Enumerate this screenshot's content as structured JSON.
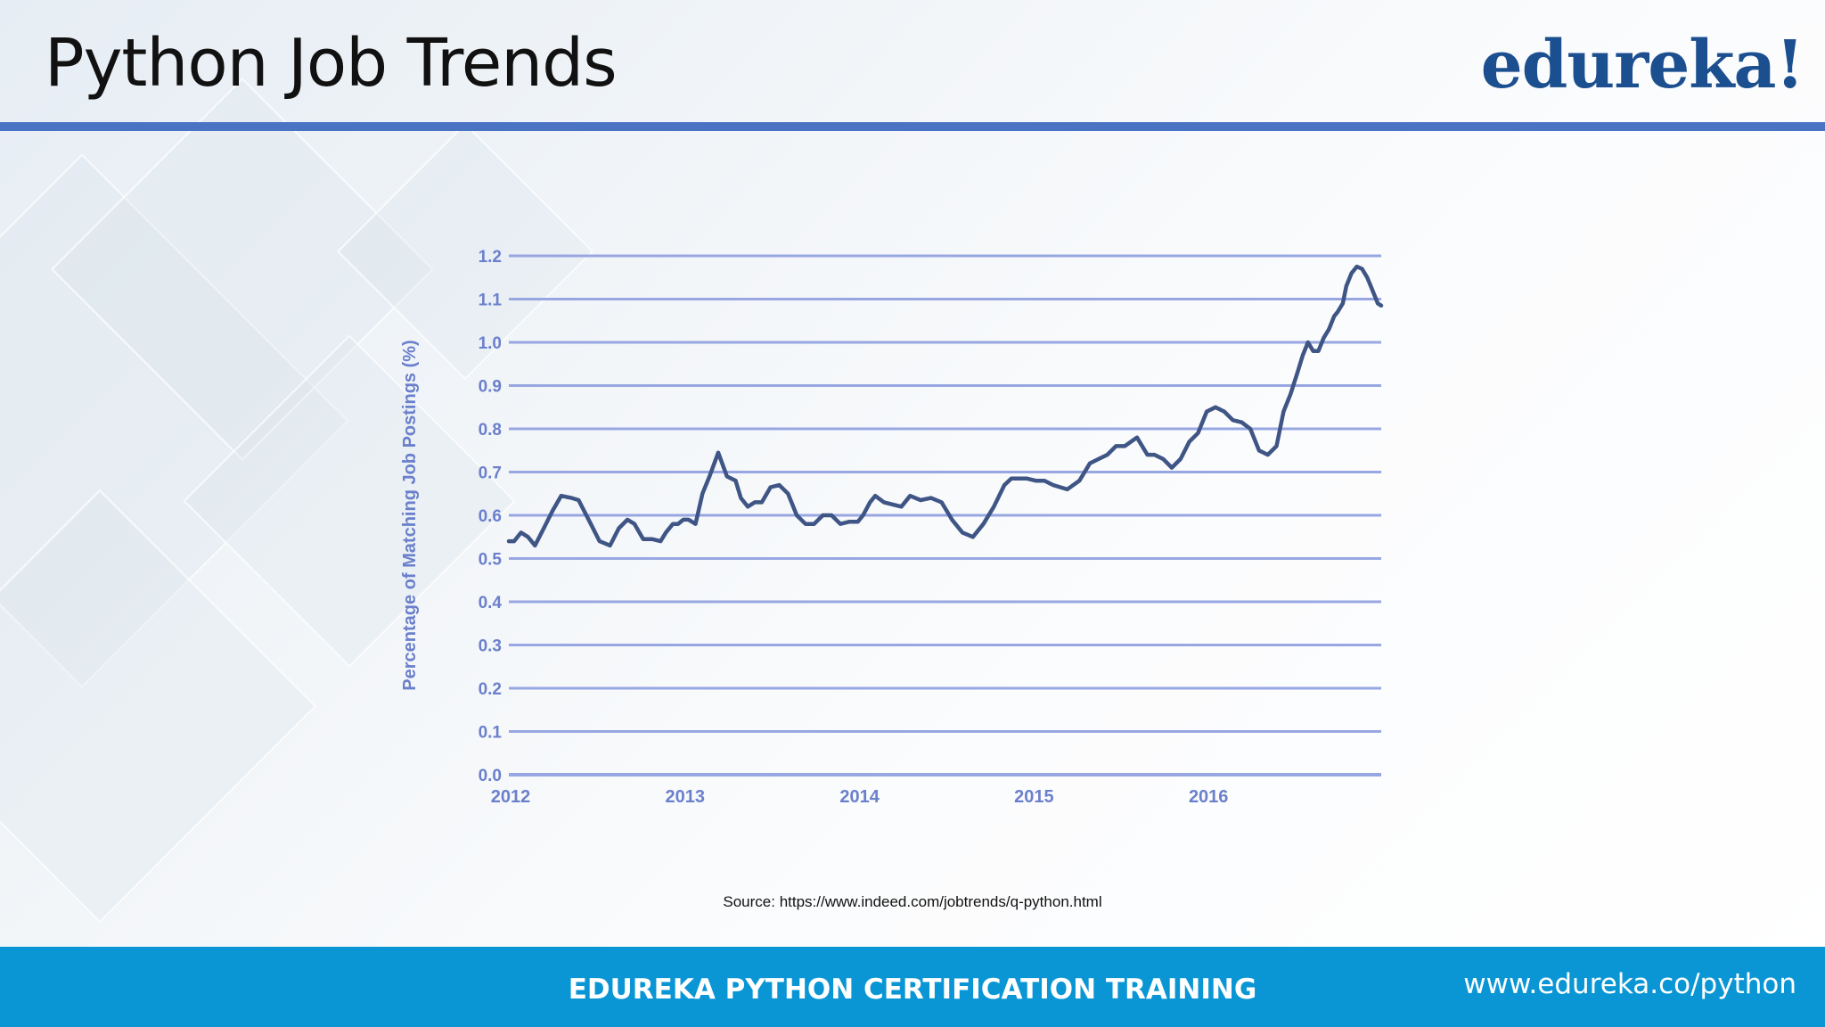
{
  "slide": {
    "title": "Python Job Trends",
    "logo_text": "edureka!",
    "source": "Source: https://www.indeed.com/jobtrends/q-python.html"
  },
  "footer": {
    "title": "EDUREKA PYTHON CERTIFICATION TRAINING",
    "url": "www.edureka.co/python"
  },
  "colors": {
    "title_rule": "#4a73c4",
    "footer_bg": "#0a96d4",
    "logo": "#1b4f8f",
    "line": "#3f5585",
    "gridline": "#98a7e2",
    "axis_text": "#6b80cc"
  },
  "chart_data": {
    "type": "line",
    "ylabel": "Percentage of Matching Job Postings (%)",
    "xlabel": "",
    "title": "",
    "xlim": [
      2012,
      2017
    ],
    "ylim": [
      0,
      1.2
    ],
    "x_ticks": [
      2012,
      2013,
      2014,
      2015,
      2016
    ],
    "x_tick_labels": [
      "2012",
      "2013",
      "2014",
      "2015",
      "2016"
    ],
    "y_ticks": [
      0.0,
      0.1,
      0.2,
      0.3,
      0.4,
      0.5,
      0.6,
      0.7,
      0.8,
      0.9,
      1.0,
      1.1,
      1.2
    ],
    "y_tick_labels": [
      "0.0",
      "0.1",
      "0.2",
      "0.3",
      "0.4",
      "0.5",
      "0.6",
      "0.7",
      "0.8",
      "0.9",
      "1.0",
      "1.1",
      "1.2"
    ],
    "grid": true,
    "legend": "none",
    "series": [
      {
        "x": [
          2012.0,
          2012.03,
          2012.07,
          2012.11,
          2012.15,
          2012.2,
          2012.25,
          2012.3,
          2012.36,
          2012.4,
          2012.47,
          2012.52,
          2012.58,
          2012.63,
          2012.68,
          2012.72,
          2012.77,
          2012.82,
          2012.87,
          2012.9,
          2012.94,
          2012.97,
          2013.0,
          2013.03,
          2013.07,
          2013.11,
          2013.15,
          2013.2,
          2013.25,
          2013.3,
          2013.33,
          2013.37,
          2013.41,
          2013.45,
          2013.5,
          2013.55,
          2013.6,
          2013.65,
          2013.7,
          2013.75,
          2013.8,
          2013.85,
          2013.9,
          2013.95,
          2014.0,
          2014.03,
          2014.07,
          2014.1,
          2014.15,
          2014.2,
          2014.25,
          2014.3,
          2014.36,
          2014.42,
          2014.48,
          2014.54,
          2014.6,
          2014.66,
          2014.72,
          2014.78,
          2014.84,
          2014.88,
          2014.93,
          2014.97,
          2015.02,
          2015.07,
          2015.12,
          2015.2,
          2015.27,
          2015.33,
          2015.38,
          2015.43,
          2015.48,
          2015.53,
          2015.6,
          2015.66,
          2015.7,
          2015.75,
          2015.8,
          2015.85,
          2015.9,
          2015.95,
          2016.0,
          2016.05,
          2016.1,
          2016.15,
          2016.2,
          2016.25,
          2016.3,
          2016.35,
          2016.4,
          2016.44,
          2016.48,
          2016.52,
          2016.55,
          2016.58,
          2016.61,
          2016.64,
          2016.67,
          2016.7,
          2016.73,
          2016.75,
          2016.78,
          2016.8,
          2016.83,
          2016.86,
          2016.89,
          2016.92,
          2016.94,
          2016.96,
          2016.98,
          2017.0
        ],
        "y": [
          0.54,
          0.54,
          0.56,
          0.55,
          0.53,
          0.57,
          0.61,
          0.645,
          0.64,
          0.635,
          0.58,
          0.54,
          0.53,
          0.57,
          0.59,
          0.58,
          0.545,
          0.545,
          0.54,
          0.56,
          0.58,
          0.58,
          0.59,
          0.59,
          0.58,
          0.65,
          0.69,
          0.745,
          0.69,
          0.68,
          0.64,
          0.62,
          0.63,
          0.63,
          0.665,
          0.67,
          0.65,
          0.6,
          0.58,
          0.58,
          0.6,
          0.6,
          0.58,
          0.585,
          0.585,
          0.6,
          0.63,
          0.645,
          0.63,
          0.625,
          0.62,
          0.645,
          0.635,
          0.64,
          0.63,
          0.59,
          0.56,
          0.55,
          0.58,
          0.62,
          0.67,
          0.685,
          0.685,
          0.685,
          0.68,
          0.68,
          0.67,
          0.66,
          0.68,
          0.72,
          0.73,
          0.74,
          0.76,
          0.76,
          0.78,
          0.74,
          0.74,
          0.73,
          0.71,
          0.73,
          0.77,
          0.79,
          0.84,
          0.85,
          0.84,
          0.82,
          0.815,
          0.8,
          0.75,
          0.74,
          0.76,
          0.84,
          0.88,
          0.93,
          0.97,
          1.0,
          0.98,
          0.98,
          1.01,
          1.03,
          1.06,
          1.07,
          1.09,
          1.13,
          1.16,
          1.175,
          1.17,
          1.15,
          1.13,
          1.11,
          1.09,
          1.085
        ]
      }
    ]
  }
}
